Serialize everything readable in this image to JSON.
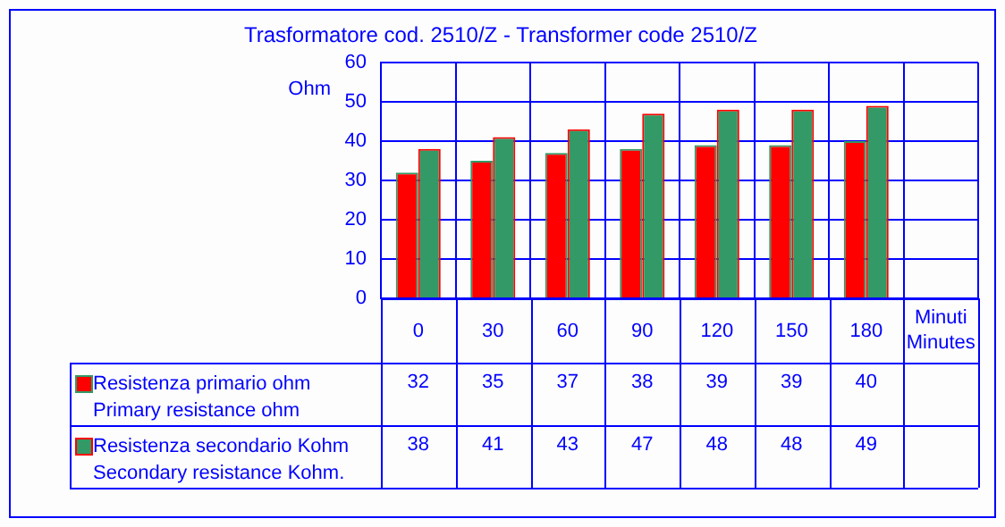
{
  "chart_data": {
    "type": "bar",
    "title": "Trasformatore cod. 2510/Z - Transformer code 2510/Z",
    "ylabel": "Ohm",
    "xlabel": "Minuti\nMinutes",
    "categories": [
      "0",
      "30",
      "60",
      "90",
      "120",
      "150",
      "180"
    ],
    "series": [
      {
        "name": "Resistenza primario ohm\nPrimary resistance ohm",
        "color": "#ff0000",
        "values": [
          32,
          35,
          37,
          38,
          39,
          39,
          40
        ]
      },
      {
        "name": "Resistenza secondario Kohm\nSecondary resistance Kohm.",
        "color": "#339966",
        "values": [
          38,
          41,
          43,
          47,
          48,
          48,
          49
        ]
      }
    ],
    "ylim": [
      0,
      60
    ],
    "yticks": [
      0,
      10,
      20,
      30,
      40,
      50,
      60
    ],
    "grid": true,
    "legend": "bottom left",
    "data_labels": true
  }
}
